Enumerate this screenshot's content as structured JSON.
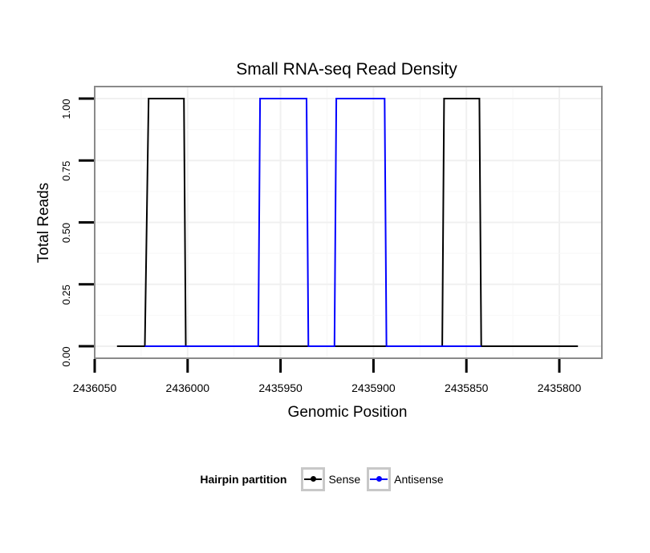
{
  "chart_data": {
    "type": "line",
    "title": "Small RNA-seq Read Density",
    "xlabel": "Genomic Position",
    "ylabel": "Total Reads",
    "xlim": [
      2436050,
      2435800
    ],
    "ylim": [
      0,
      1
    ],
    "x_reversed": true,
    "x_ticks": [
      2436050,
      2436000,
      2435950,
      2435900,
      2435850,
      2435800
    ],
    "x_tick_labels": [
      "2436050",
      "2436000",
      "2435950",
      "2435900",
      "2435850",
      "2435800"
    ],
    "y_ticks": [
      0,
      0.25,
      0.5,
      0.75,
      1.0
    ],
    "y_tick_labels": [
      "0.00",
      "0.25",
      "0.50",
      "0.75",
      "1.00"
    ],
    "grid": true,
    "legend_position": "bottom",
    "legend_title": "Hairpin partition",
    "series": [
      {
        "name": "Sense",
        "color": "#000000",
        "x": [
          2436038,
          2436023,
          2436021,
          2436002,
          2436001,
          2435863,
          2435862,
          2435843,
          2435842,
          2435790
        ],
        "y": [
          0,
          0,
          1,
          1,
          0,
          0,
          1,
          1,
          0,
          0
        ]
      },
      {
        "name": "Antisense",
        "color": "#0000ff",
        "x": [
          2436023,
          2436001,
          2435962,
          2435961,
          2435936,
          2435935,
          2435921,
          2435920,
          2435894,
          2435893,
          2435863,
          2435842
        ],
        "y": [
          0,
          0,
          0,
          1,
          1,
          0,
          0,
          1,
          1,
          0,
          0,
          0
        ]
      }
    ]
  }
}
